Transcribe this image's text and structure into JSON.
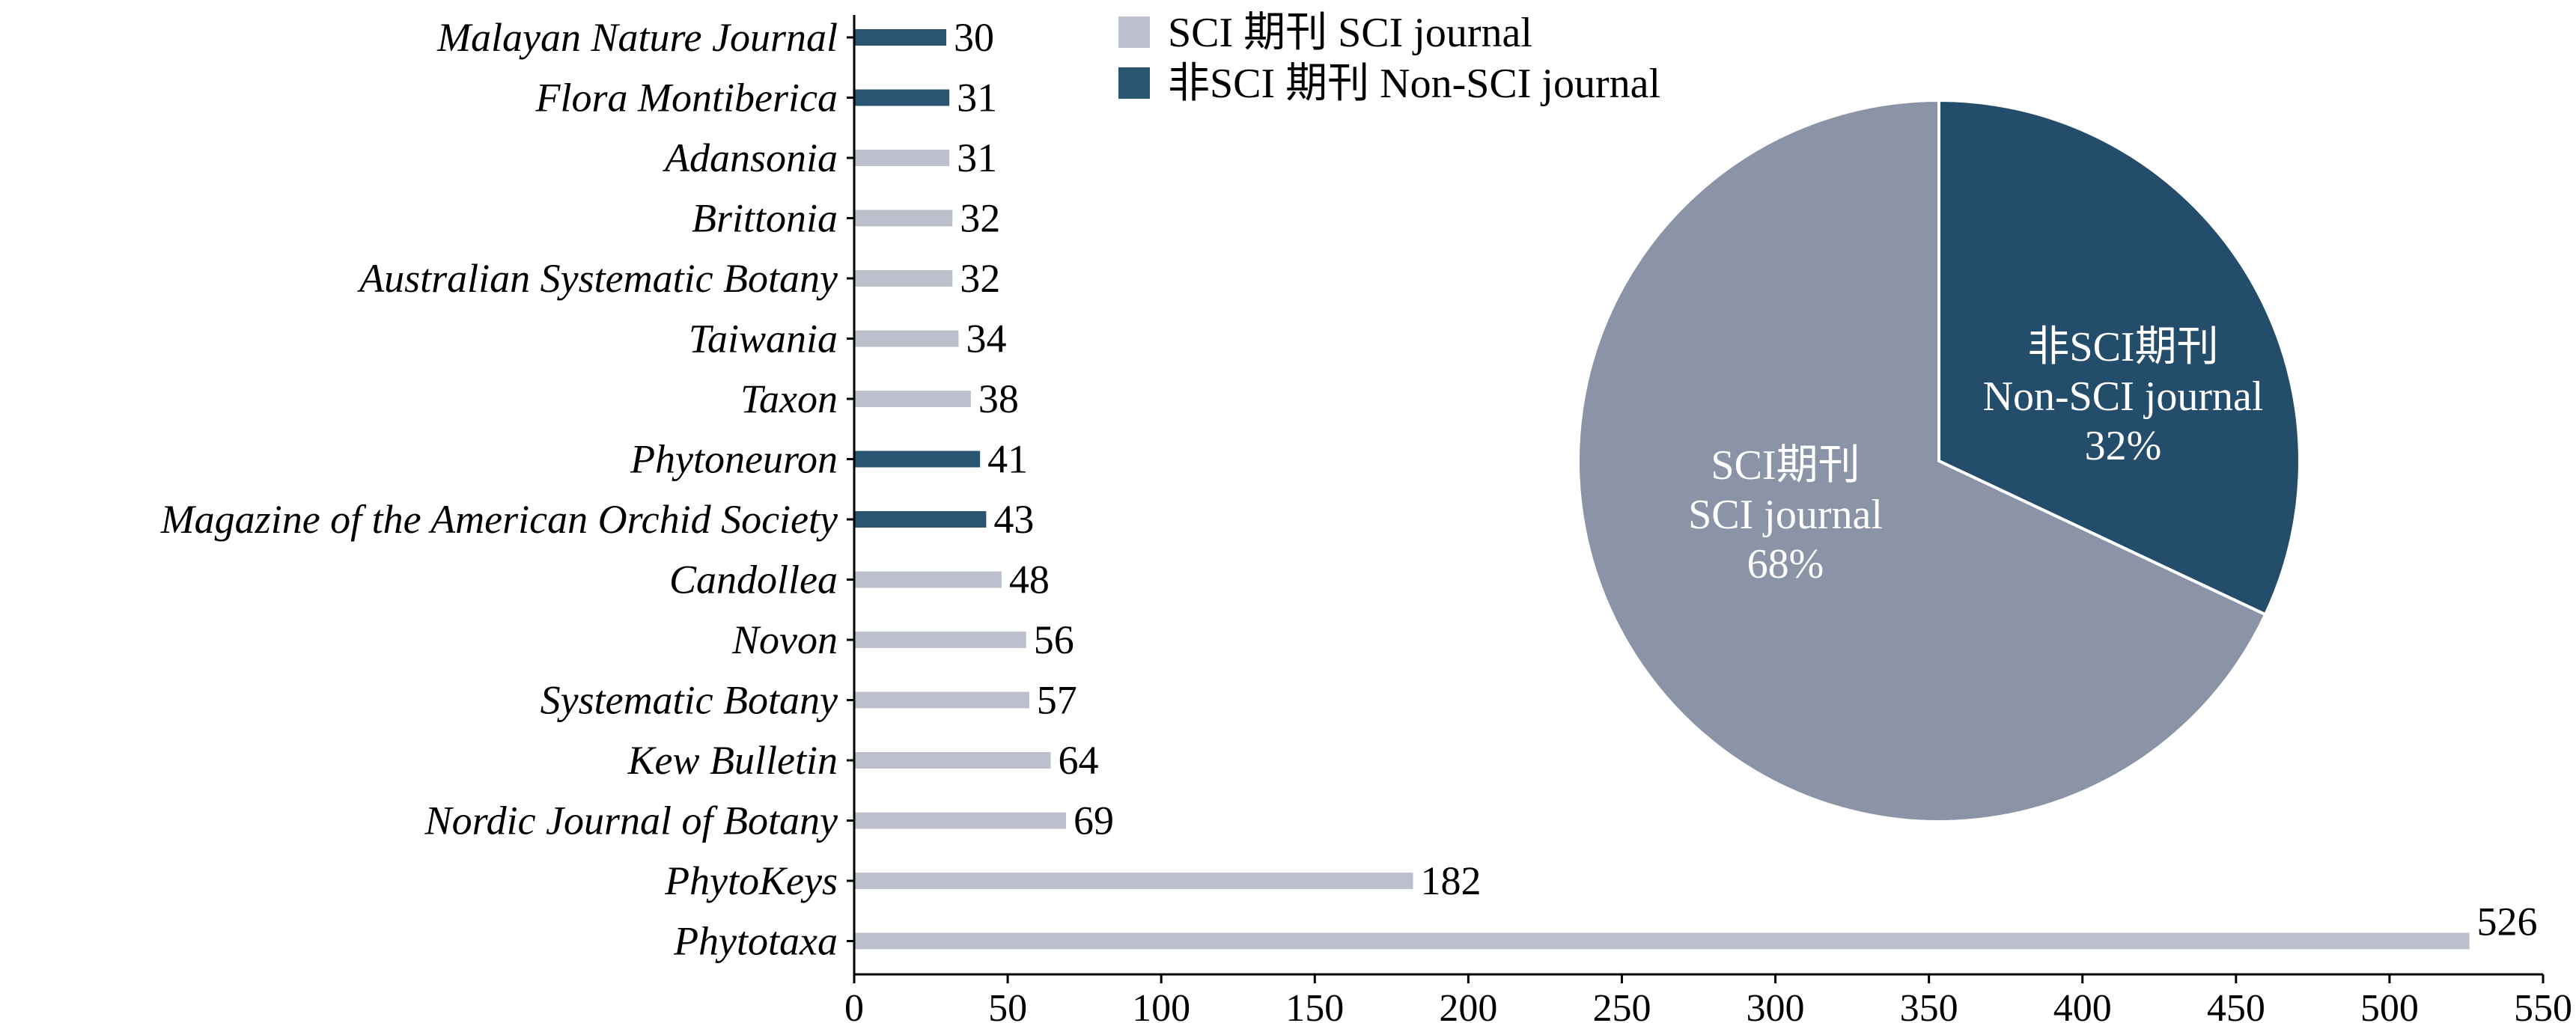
{
  "colors": {
    "sci_bar": "#bcc0cc",
    "nonsci_bar": "#295571",
    "sci_pie": "#8a94a6",
    "nonsci_pie": "#244d6b",
    "axis": "#000000"
  },
  "chart_data": [
    {
      "type": "bar",
      "orientation": "horizontal",
      "categories": [
        "Malayan Nature Journal",
        "Flora Montiberica",
        "Adansonia",
        "Brittonia",
        "Australian Systematic Botany",
        "Taiwania",
        "Taxon",
        "Phytoneuron",
        "Magazine of the American Orchid Society",
        "Candollea",
        "Novon",
        "Systematic Botany",
        "Kew Bulletin",
        "Nordic Journal of Botany",
        "PhytoKeys",
        "Phytotaxa"
      ],
      "values": [
        30,
        31,
        31,
        32,
        32,
        34,
        38,
        41,
        43,
        48,
        56,
        57,
        64,
        69,
        182,
        526
      ],
      "value_labels": [
        "30",
        "31",
        "31",
        "32",
        "32",
        "34",
        "38",
        "41",
        "43",
        "48",
        "56",
        "57",
        "64",
        "69",
        "182",
        "526"
      ],
      "journal_type": [
        "Non-SCI",
        "Non-SCI",
        "SCI",
        "SCI",
        "SCI",
        "SCI",
        "SCI",
        "Non-SCI",
        "Non-SCI",
        "SCI",
        "SCI",
        "SCI",
        "SCI",
        "SCI",
        "SCI",
        "SCI"
      ],
      "xlim": [
        0,
        550
      ],
      "xticks": [
        0,
        50,
        100,
        150,
        200,
        250,
        300,
        350,
        400,
        450,
        500,
        550
      ],
      "xtick_labels": [
        "0",
        "50",
        "100",
        "150",
        "200",
        "250",
        "300",
        "350",
        "400",
        "450",
        "500",
        "550"
      ],
      "legend": {
        "placement": "top-center",
        "entries": [
          {
            "key": "SCI",
            "label": "SCI 期刊 SCI journal"
          },
          {
            "key": "Non-SCI",
            "label": "非SCI 期刊 Non-SCI journal"
          }
        ]
      },
      "grid": false
    },
    {
      "type": "pie",
      "slices": [
        {
          "key": "Non-SCI",
          "value": 32,
          "label_lines": [
            "非SCI期刊",
            "Non-SCI journal",
            "32%"
          ]
        },
        {
          "key": "SCI",
          "value": 68,
          "label_lines": [
            "SCI期刊",
            "SCI journal",
            "68%"
          ]
        }
      ],
      "start": "12 o'clock",
      "direction": "clockwise"
    }
  ]
}
